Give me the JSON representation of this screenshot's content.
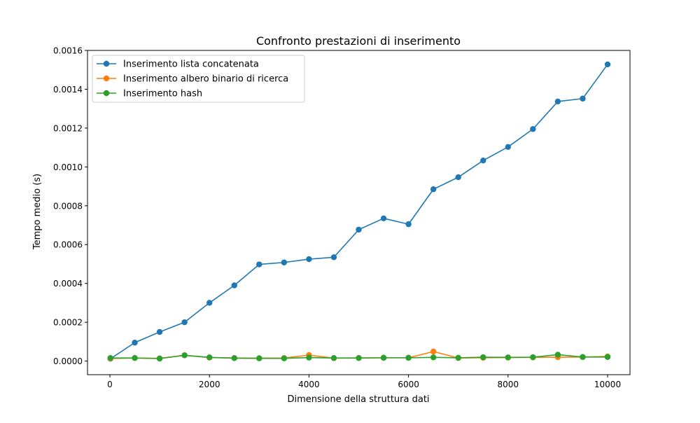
{
  "chart_data": {
    "type": "line",
    "title": "Confronto prestazioni di inserimento",
    "xlabel": "Dimensione della struttura dati",
    "ylabel": "Tempo medio (s)",
    "xlim": [
      -450,
      10450
    ],
    "ylim": [
      -7e-05,
      0.0016
    ],
    "x_ticks": [
      0,
      2000,
      4000,
      6000,
      8000,
      10000
    ],
    "x_tick_labels": [
      "0",
      "2000",
      "4000",
      "6000",
      "8000",
      "10000"
    ],
    "y_ticks": [
      0,
      0.0002,
      0.0004,
      0.0006,
      0.0008,
      0.001,
      0.0012,
      0.0014,
      0.0016
    ],
    "y_tick_labels": [
      "0.0000",
      "0.0002",
      "0.0004",
      "0.0006",
      "0.0008",
      "0.0010",
      "0.0012",
      "0.0014",
      "0.0016"
    ],
    "grid": false,
    "legend_position": "top-left",
    "x": [
      10,
      500,
      1000,
      1500,
      2000,
      2500,
      3000,
      3500,
      4000,
      4500,
      5000,
      5500,
      6000,
      6500,
      7000,
      7500,
      8000,
      8500,
      9000,
      9500,
      10000
    ],
    "series": [
      {
        "name": "Inserimento lista concatenata",
        "color": "#1f77b4",
        "values": [
          1.2e-05,
          9.5e-05,
          0.00015,
          0.0002,
          0.0003,
          0.00039,
          0.000498,
          0.000508,
          0.000525,
          0.000535,
          0.000677,
          0.000735,
          0.000705,
          0.000885,
          0.000947,
          0.001033,
          0.001103,
          0.001195,
          0.001337,
          0.001352,
          0.001528
        ]
      },
      {
        "name": "Inserimento albero binario di ricerca",
        "color": "#ff7f0e",
        "values": [
          1.3e-05,
          1.6e-05,
          1.4e-05,
          3e-05,
          1.8e-05,
          1.6e-05,
          1.5e-05,
          1.6e-05,
          3.1e-05,
          1.5e-05,
          1.6e-05,
          1.7e-05,
          1.7e-05,
          4.9e-05,
          1.6e-05,
          1.7e-05,
          1.8e-05,
          1.9e-05,
          2e-05,
          2.1e-05,
          2.4e-05
        ]
      },
      {
        "name": "Inserimento hash",
        "color": "#2ca02c",
        "values": [
          1.6e-05,
          1.6e-05,
          1.3e-05,
          3e-05,
          1.9e-05,
          1.5e-05,
          1.4e-05,
          1.4e-05,
          1.8e-05,
          1.6e-05,
          1.6e-05,
          1.7e-05,
          1.7e-05,
          1.9e-05,
          1.7e-05,
          2e-05,
          1.9e-05,
          2e-05,
          3.3e-05,
          2.1e-05,
          2.1e-05
        ]
      }
    ]
  }
}
